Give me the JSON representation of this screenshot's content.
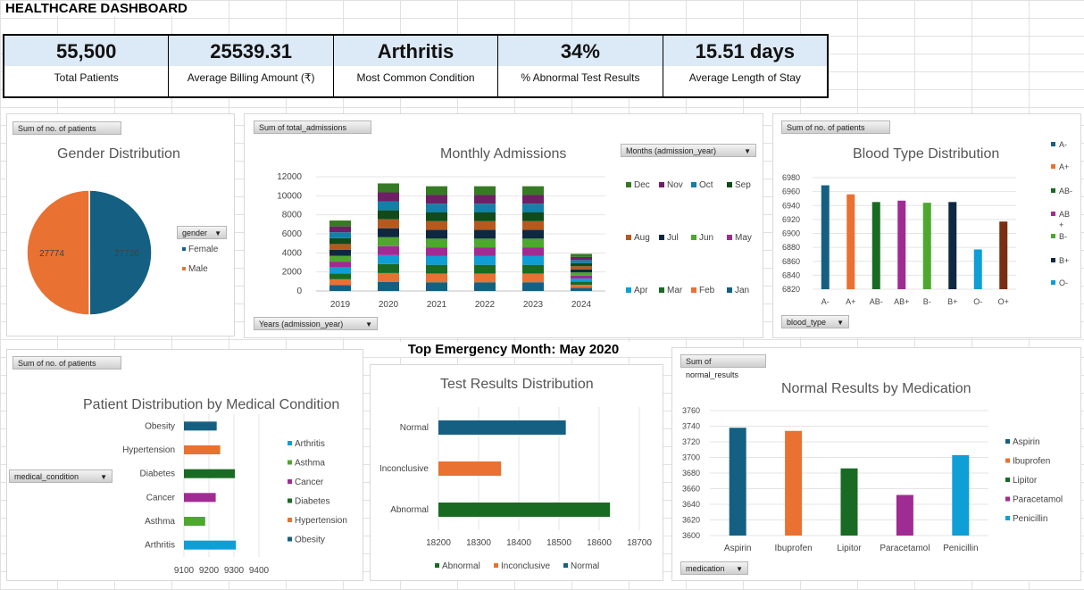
{
  "dashboard": {
    "title": "HEALTHCARE DASHBOARD"
  },
  "kpis": [
    {
      "value": "55,500",
      "label": "Total Patients"
    },
    {
      "value": "25539.31",
      "label": "Average Billing Amount (₹)"
    },
    {
      "value": "Arthritis",
      "label": "Most Common Condition"
    },
    {
      "value": "34%",
      "label": "% Abnormal Test Results"
    },
    {
      "value": "15.51 days",
      "label": "Average Length of Stay"
    }
  ],
  "emergency_heading": "Top Emergency Month: May 2020",
  "colors": {
    "blue": "#156082",
    "orange": "#e97132",
    "green": "#196b24",
    "cyan": "#0f9ed5",
    "purple": "#a02b93",
    "lightgreen": "#4ea72e",
    "navy": "#0e2841",
    "brown": "#7a2e12"
  },
  "charts": {
    "gender": {
      "field_button": "Sum of no. of patients",
      "filter_button": "gender",
      "chart_data": {
        "type": "pie",
        "title": "Gender Distribution",
        "slices": [
          {
            "name": "Female",
            "value": 27726,
            "label": "27726",
            "color": "#156082"
          },
          {
            "name": "Male",
            "value": 27774,
            "label": "27774",
            "color": "#e97132"
          }
        ],
        "legend": "right"
      }
    },
    "monthly": {
      "field_button": "Sum of total_admissions",
      "filter_button": "Months (admission_year)",
      "axis_button": "Years (admission_year)",
      "chart_data": {
        "type": "bar",
        "stacked": true,
        "title": "Monthly Admissions",
        "categories": [
          "2019",
          "2020",
          "2021",
          "2022",
          "2023",
          "2024"
        ],
        "totals": [
          7400,
          11300,
          11000,
          11000,
          11000,
          3900
        ],
        "yticks": [
          0,
          2000,
          4000,
          6000,
          8000,
          10000,
          12000
        ],
        "ylim": [
          0,
          12000
        ],
        "legend": "right",
        "series": [
          {
            "name": "Jan",
            "color": "#156082"
          },
          {
            "name": "Feb",
            "color": "#e97132"
          },
          {
            "name": "Mar",
            "color": "#196b24"
          },
          {
            "name": "Apr",
            "color": "#0f9ed5"
          },
          {
            "name": "May",
            "color": "#a02b93"
          },
          {
            "name": "Jun",
            "color": "#4ea72e"
          },
          {
            "name": "Jul",
            "color": "#0e2841"
          },
          {
            "name": "Aug",
            "color": "#b55a1f"
          },
          {
            "name": "Sep",
            "color": "#124a1a"
          },
          {
            "name": "Oct",
            "color": "#1380a8"
          },
          {
            "name": "Nov",
            "color": "#6e1f66"
          },
          {
            "name": "Dec",
            "color": "#367a23"
          }
        ],
        "legend_order": [
          "Dec",
          "Nov",
          "Oct",
          "Sep",
          "Aug",
          "Jul",
          "Jun",
          "May",
          "Apr",
          "Mar",
          "Feb",
          "Jan"
        ]
      }
    },
    "blood": {
      "field_button": "Sum of no. of patients",
      "axis_button": "blood_type",
      "chart_data": {
        "type": "bar",
        "title": "Blood Type Distribution",
        "categories": [
          "A-",
          "A+",
          "AB-",
          "AB+",
          "B-",
          "B+",
          "O-",
          "O+"
        ],
        "values": [
          6969,
          6956,
          6945,
          6947,
          6944,
          6945,
          6877,
          6917
        ],
        "colors": [
          "#156082",
          "#e97132",
          "#196b24",
          "#a02b93",
          "#4ea72e",
          "#0e2841",
          "#0f9ed5",
          "#7a2e12"
        ],
        "yticks": [
          6820,
          6840,
          6860,
          6880,
          6900,
          6920,
          6940,
          6960,
          6980
        ],
        "ylim": [
          6820,
          6980
        ],
        "legend": "right",
        "legend_labels": [
          "A-",
          "A+",
          "AB-",
          "AB\n+",
          "B-",
          "B+",
          "O-"
        ],
        "legend_colors": [
          "#156082",
          "#e97132",
          "#196b24",
          "#a02b93",
          "#4ea72e",
          "#0e2841",
          "#0f9ed5"
        ]
      }
    },
    "condition": {
      "field_button": "Sum of no. of patients",
      "axis_button": "medical_condition",
      "chart_data": {
        "type": "bar",
        "orientation": "horizontal",
        "title": "Patient Distribution by Medical Condition",
        "categories": [
          "Obesity",
          "Hypertension",
          "Diabetes",
          "Cancer",
          "Asthma",
          "Arthritis"
        ],
        "values": [
          9231,
          9245,
          9304,
          9227,
          9185,
          9308
        ],
        "colors": [
          "#156082",
          "#e97132",
          "#196b24",
          "#a02b93",
          "#4ea72e",
          "#0f9ed5"
        ],
        "xticks": [
          9100,
          9200,
          9300,
          9400
        ],
        "xlim": [
          9100,
          9400
        ],
        "legend": "right",
        "legend_labels": [
          "Arthritis",
          "Asthma",
          "Cancer",
          "Diabetes",
          "Hypertension",
          "Obesity"
        ],
        "legend_colors": [
          "#0f9ed5",
          "#4ea72e",
          "#a02b93",
          "#196b24",
          "#e97132",
          "#156082"
        ]
      }
    },
    "test": {
      "chart_data": {
        "type": "bar",
        "orientation": "horizontal",
        "title": "Test Results Distribution",
        "categories": [
          "Normal",
          "Inconclusive",
          "Abnormal"
        ],
        "values": [
          18517,
          18356,
          18627
        ],
        "colors": [
          "#156082",
          "#e97132",
          "#196b24"
        ],
        "xticks": [
          18200,
          18300,
          18400,
          18500,
          18600,
          18700
        ],
        "xlim": [
          18200,
          18700
        ],
        "legend": "bottom",
        "legend_labels": [
          "Abnormal",
          "Inconclusive",
          "Normal"
        ],
        "legend_colors": [
          "#196b24",
          "#e97132",
          "#156082"
        ]
      }
    },
    "medication": {
      "field_button": "Sum of normal_results",
      "axis_button": "medication",
      "chart_data": {
        "type": "bar",
        "title": "Normal Results by Medication",
        "categories": [
          "Aspirin",
          "Ibuprofen",
          "Lipitor",
          "Paracetamol",
          "Penicillin"
        ],
        "values": [
          3738,
          3734,
          3686,
          3652,
          3703
        ],
        "colors": [
          "#156082",
          "#e97132",
          "#196b24",
          "#a02b93",
          "#0f9ed5"
        ],
        "yticks": [
          3600,
          3620,
          3640,
          3660,
          3680,
          3700,
          3720,
          3740,
          3760
        ],
        "ylim": [
          3600,
          3760
        ],
        "legend": "right",
        "legend_labels": [
          "Aspirin",
          "Ibuprofen",
          "Lipitor",
          "Paracetamol",
          "Penicillin"
        ],
        "legend_colors": [
          "#156082",
          "#e97132",
          "#196b24",
          "#a02b93",
          "#0f9ed5"
        ]
      }
    }
  }
}
